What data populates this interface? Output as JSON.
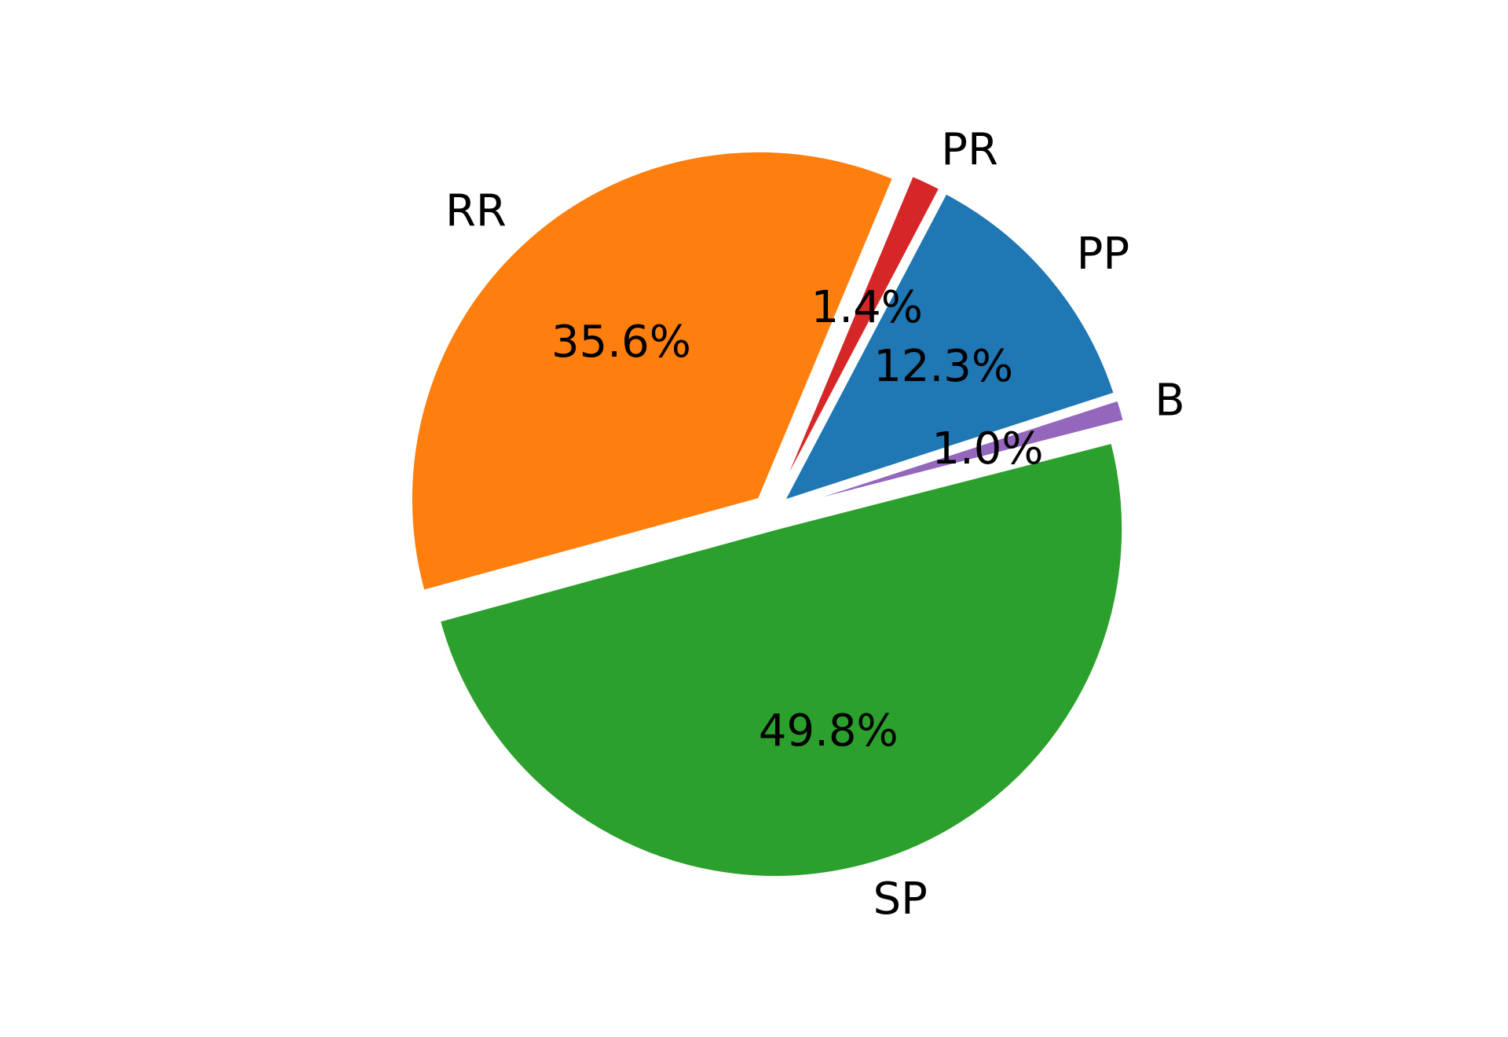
{
  "chart_data": {
    "type": "pie",
    "categories": [
      "PP",
      "PR",
      "RR",
      "SP",
      "B"
    ],
    "values": [
      12.3,
      1.4,
      35.6,
      49.8,
      1.0
    ],
    "value_labels": [
      "12.3%",
      "1.4%",
      "35.6%",
      "49.8%",
      "1.0%"
    ],
    "colors": [
      "#1f77b4",
      "#d62728",
      "#ff7f0e",
      "#2ca02c",
      "#9467bd"
    ],
    "start_angle_deg": 18,
    "direction": "counterclockwise",
    "exploded": true,
    "title": "",
    "legend": "none"
  }
}
